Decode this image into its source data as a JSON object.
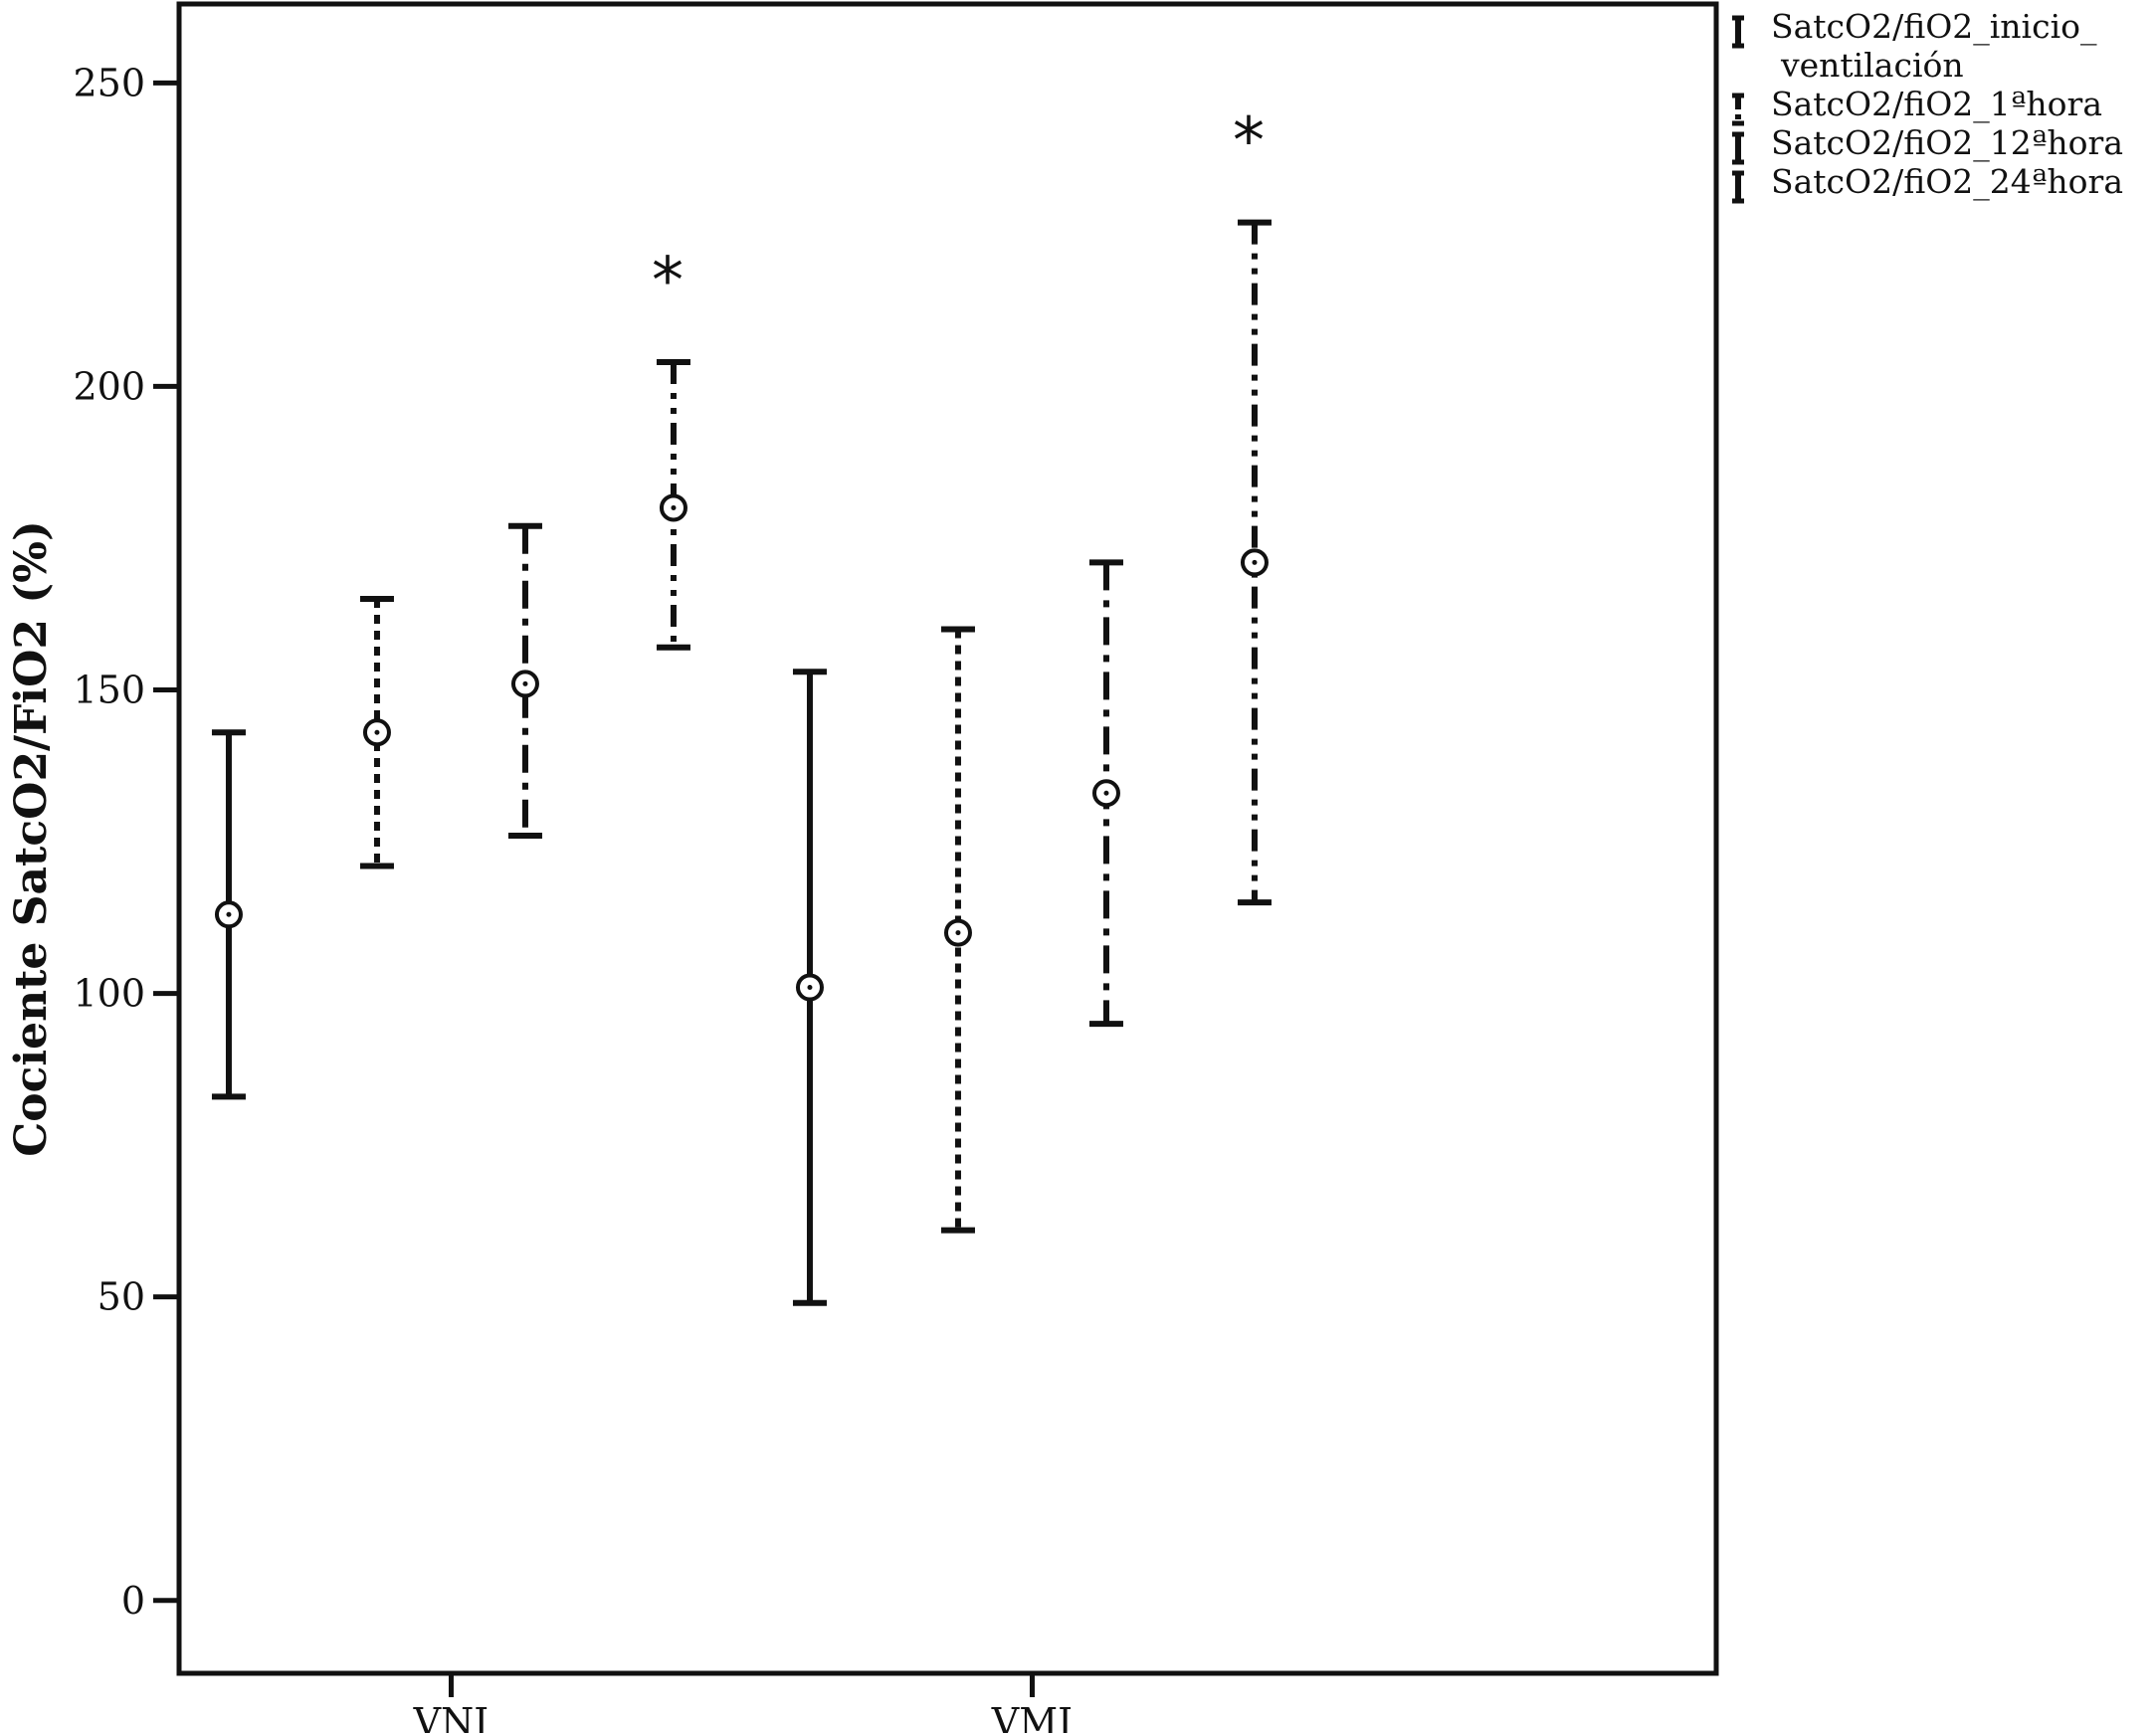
{
  "chart_data": {
    "type": "errorbar",
    "ylabel": "Cociente SatcO2/FiO2 (%)",
    "xlabel": "",
    "ylim": [
      -12,
      263
    ],
    "yticks": [
      0,
      50,
      100,
      150,
      200,
      250
    ],
    "categories": [
      "VNI",
      "VMI"
    ],
    "legend_position": "top-right, outside plot",
    "series": [
      {
        "name": "SatcO2/fiO2_inicio_ventilación",
        "legend_lines": [
          "SatcO2/fiO2_inicio_",
          "ventilación"
        ],
        "line_style": "solid",
        "points": [
          {
            "category": "VNI",
            "mean": 113,
            "lower": 83,
            "upper": 143
          },
          {
            "category": "VMI",
            "mean": 101,
            "lower": 49,
            "upper": 153
          }
        ]
      },
      {
        "name": "SatcO2/fiO2_1ªhora",
        "legend_lines": [
          "SatcO2/fiO2_1ªhora"
        ],
        "line_style": "dotted",
        "points": [
          {
            "category": "VNI",
            "mean": 143,
            "lower": 121,
            "upper": 165
          },
          {
            "category": "VMI",
            "mean": 110,
            "lower": 61,
            "upper": 160
          }
        ]
      },
      {
        "name": "SatcO2/fiO2_12ªhora",
        "legend_lines": [
          "SatcO2/fiO2_12ªhora"
        ],
        "line_style": "dash-dot",
        "points": [
          {
            "category": "VNI",
            "mean": 151,
            "lower": 126,
            "upper": 177
          },
          {
            "category": "VMI",
            "mean": 133,
            "lower": 95,
            "upper": 171
          }
        ]
      },
      {
        "name": "SatcO2/fiO2_24ªhora",
        "legend_lines": [
          "SatcO2/fiO2_24ªhora"
        ],
        "line_style": "dash-dot-dot",
        "points": [
          {
            "category": "VNI",
            "mean": 180,
            "lower": 157,
            "upper": 204,
            "annotation": "*"
          },
          {
            "category": "VMI",
            "mean": 171,
            "lower": 115,
            "upper": 227,
            "annotation": "*"
          }
        ]
      }
    ]
  }
}
